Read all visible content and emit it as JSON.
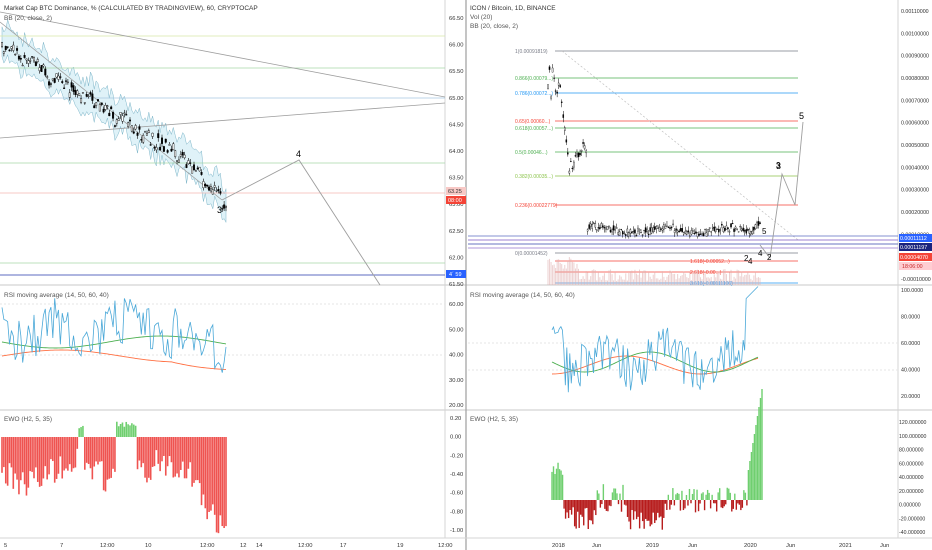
{
  "left": {
    "title": "Market Cap BTC Dominance, % (CALCULATED BY TRADINGVIEW), 60, CRYPTOCAP",
    "bb_label": "BB (20, close, 2)",
    "rsi_label": "RSI moving average (14, 50, 60, 40)",
    "ewo_label": "EWO (H2, 5, 35)",
    "price_ticks": [
      "66.50",
      "66.00",
      "65.50",
      "65.00",
      "64.50",
      "64.00",
      "63.50",
      "63.00",
      "62.50",
      "62.00",
      "61.50"
    ],
    "rsi_ticks": [
      "60.00",
      "50.00",
      "40.00",
      "30.00",
      "20.00"
    ],
    "ewo_ticks": [
      "0.20",
      "0.00",
      "-0.20",
      "-0.40",
      "-0.60",
      "-0.80",
      "-1.00"
    ],
    "price_tags": [
      "63.25",
      "08:00",
      "4´ 59"
    ],
    "time_ticks": [
      "5",
      "7",
      "12:00",
      "10",
      "12:00",
      "12",
      "14",
      "12:00",
      "17",
      "19",
      "12:00"
    ],
    "wave_labels": [
      "3",
      "4"
    ]
  },
  "right": {
    "title": "ICON / Bitcoin, 1D, BINANCE",
    "vol_label": "Vol (20)",
    "bb_label": "BB (20, close, 2)",
    "rsi_label": "RSI moving average (14, 50, 60, 40)",
    "ewo_label": "EWO (H2, 5, 35)",
    "price_ticks": [
      "0.00110000",
      "0.00100000",
      "0.00090000",
      "0.00080000",
      "0.00070000",
      "0.00060000",
      "0.00050000",
      "0.00040000",
      "0.00030000",
      "0.00020000",
      "0.00010000",
      "0.00000000",
      "-0.00010000"
    ],
    "rsi_ticks": [
      "100.0000",
      "80.0000",
      "60.0000",
      "40.0000",
      "20.0000"
    ],
    "ewo_ticks": [
      "120.000000",
      "100.000000",
      "80.000000",
      "60.000000",
      "40.000000",
      "20.000000",
      "0.000000",
      "-20.000000",
      "-40.000000"
    ],
    "price_tags": [
      "0.00011112",
      "0.00011197",
      "0.00004070",
      "18:06:00"
    ],
    "time_ticks": [
      "2018",
      "Jun",
      "2019",
      "Jun",
      "2020",
      "Jun",
      "2021",
      "Jun"
    ],
    "wave_labels": [
      "3",
      "5",
      "4",
      "2",
      "4",
      "2",
      "3",
      "5"
    ],
    "fib_levels": [
      {
        "label": "1(0.00091819)",
        "color": "#787b86"
      },
      {
        "label": "0.866(0.00079...)",
        "color": "#4caf50"
      },
      {
        "label": "0.786(0.00072...)",
        "color": "#2196f3"
      },
      {
        "label": "0.65(0.00060...)",
        "color": "#f44336"
      },
      {
        "label": "0.618(0.00057...)",
        "color": "#4caf50"
      },
      {
        "label": "0.5(0.00046...)",
        "color": "#4caf50"
      },
      {
        "label": "0.382(0.00035...)",
        "color": "#8bc34a"
      },
      {
        "label": "0.236(0.00022779)",
        "color": "#f44336"
      },
      {
        "label": "0(0.00001452)",
        "color": "#787b86"
      },
      {
        "label": "1.618(-0.00052...)",
        "color": "#f44336"
      },
      {
        "label": "2.618(-0.00...)",
        "color": "#f44336"
      },
      {
        "label": "3.618(-0.00111106)",
        "color": "#2196f3"
      }
    ]
  },
  "colors": {
    "candle_down": "#000000",
    "bb_fill": "#b7e3ef",
    "rsi_line": "#4aa8d8",
    "rsi_ma": "#4caf50",
    "rsi_ma2": "#ff7043",
    "ewo_pos": "#6fcf6f",
    "ewo_neg": "#ef5350",
    "ewo_neg_dark": "#b71c1c",
    "grid": "#e6e6e6",
    "tag_red": "#f44336",
    "tag_blue": "#2962ff"
  }
}
